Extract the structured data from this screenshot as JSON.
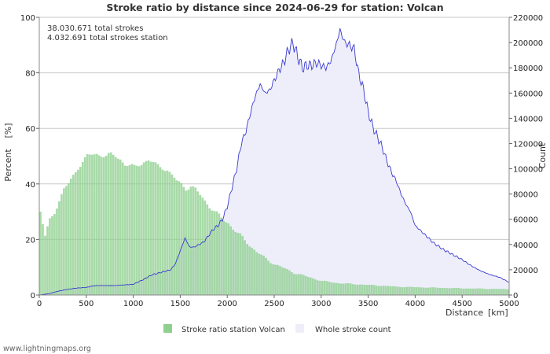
{
  "chart_data": {
    "type": "bar+area",
    "title": "Stroke ratio by distance since 2024-06-29 for station: Volcan",
    "info_lines": [
      "38.030.671 total strokes",
      "4.032.691 total strokes station"
    ],
    "xlabel": "Distance",
    "xunit": "[km]",
    "ylabel_left": "Percent",
    "ylabel_left_unit": "[%]",
    "ylabel_right": "Count",
    "xlim": [
      0,
      5000
    ],
    "ylim_left": [
      0,
      100
    ],
    "ylim_right": [
      0,
      220000
    ],
    "x_ticks": [
      "0",
      "500",
      "1000",
      "1500",
      "2000",
      "2500",
      "3000",
      "3500",
      "4000",
      "4500",
      "5000"
    ],
    "y_left_ticks": [
      "0",
      "20",
      "40",
      "60",
      "80",
      "100"
    ],
    "y_right_ticks": [
      "0",
      "20000",
      "40000",
      "60000",
      "80000",
      "100000",
      "120000",
      "140000",
      "160000",
      "180000",
      "200000",
      "220000"
    ],
    "bin_km": 25,
    "series": [
      {
        "name": "Stroke ratio station Volcan",
        "kind": "bar",
        "axis": "left",
        "color": "#8fd08f",
        "x": [
          0,
          50,
          100,
          150,
          200,
          250,
          300,
          350,
          400,
          450,
          500,
          550,
          600,
          650,
          700,
          750,
          800,
          850,
          900,
          950,
          1000,
          1050,
          1100,
          1150,
          1200,
          1250,
          1300,
          1350,
          1400,
          1450,
          1500,
          1550,
          1600,
          1650,
          1700,
          1750,
          1800,
          1850,
          1900,
          1950,
          2000,
          2100,
          2200,
          2300,
          2400,
          2500,
          2600,
          2700,
          2800,
          2900,
          3000,
          3200,
          3400,
          3600,
          3800,
          4000,
          4500,
          5000
        ],
        "values": [
          30,
          21,
          27,
          30,
          34,
          38,
          40,
          43,
          46,
          48,
          50,
          50.5,
          50.8,
          50.5,
          50,
          50.5,
          50,
          49,
          47,
          46.5,
          46,
          47,
          48,
          48.5,
          47.5,
          46.5,
          46,
          45,
          43,
          41,
          40,
          38.5,
          39,
          38,
          36,
          34,
          32,
          30,
          28.5,
          27,
          26,
          22,
          19,
          15.5,
          13,
          11,
          9.5,
          8,
          7,
          6,
          5,
          4.2,
          3.8,
          3.4,
          3,
          2.8,
          2.4,
          2.1
        ]
      },
      {
        "name": "Whole stroke count",
        "kind": "area",
        "axis": "right",
        "color": "#3a3ad0",
        "fill": "#eeeefb",
        "x": [
          0,
          100,
          200,
          300,
          400,
          500,
          600,
          700,
          800,
          900,
          1000,
          1100,
          1200,
          1300,
          1400,
          1450,
          1500,
          1550,
          1600,
          1650,
          1700,
          1750,
          1800,
          1850,
          1900,
          1950,
          2000,
          2050,
          2100,
          2150,
          2200,
          2250,
          2300,
          2350,
          2400,
          2450,
          2500,
          2550,
          2600,
          2650,
          2700,
          2750,
          2800,
          2850,
          2900,
          2950,
          3000,
          3050,
          3100,
          3150,
          3200,
          3250,
          3300,
          3350,
          3400,
          3450,
          3500,
          3550,
          3600,
          3650,
          3700,
          3750,
          3800,
          3850,
          3900,
          3950,
          4000,
          4100,
          4200,
          4300,
          4400,
          4500,
          4600,
          4700,
          4800,
          4900,
          5000
        ],
        "values": [
          0,
          1000,
          3000,
          4500,
          5500,
          6000,
          7500,
          7500,
          7500,
          8000,
          8500,
          12000,
          16000,
          18000,
          20000,
          25000,
          35000,
          45000,
          38000,
          38000,
          40000,
          42000,
          47000,
          52000,
          55000,
          60000,
          70000,
          85000,
          100000,
          120000,
          130000,
          145000,
          158000,
          167000,
          160000,
          162000,
          170000,
          178000,
          184000,
          194000,
          200000,
          189000,
          180000,
          182000,
          182000,
          184000,
          182000,
          180000,
          185000,
          196000,
          210000,
          200000,
          198000,
          195000,
          175000,
          163000,
          145000,
          133000,
          125000,
          117000,
          106000,
          97000,
          90000,
          80000,
          72000,
          66000,
          55000,
          48000,
          41000,
          36000,
          32000,
          28000,
          23000,
          19000,
          16000,
          14000,
          10000
        ]
      }
    ],
    "legend": [
      "Stroke ratio station Volcan",
      "Whole stroke count"
    ],
    "legend_position": "bottom-center",
    "grid": true,
    "footer": "www.lightningmaps.org"
  }
}
